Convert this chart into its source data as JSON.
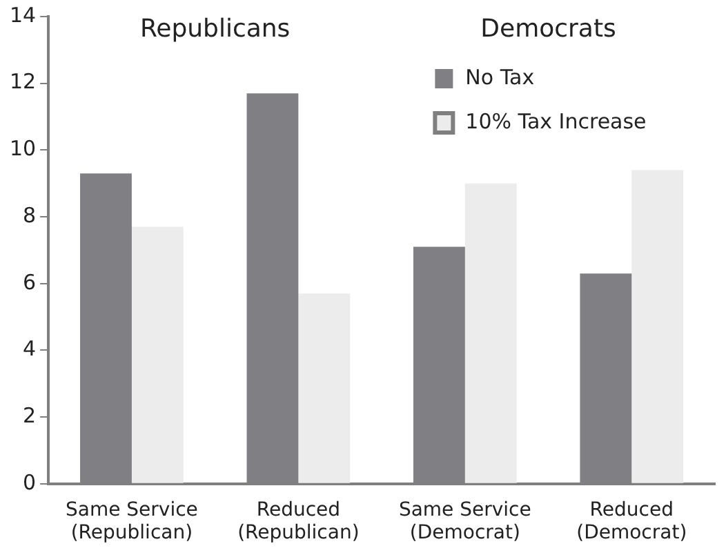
{
  "chart_data": {
    "type": "bar",
    "categories": [
      "Same Service\n(Republican)",
      "Reduced\n(Republican)",
      "Same Service\n(Democrat)",
      "Reduced\n(Democrat)"
    ],
    "series": [
      {
        "name": "No Tax",
        "color": "#808084",
        "values": [
          9.3,
          11.7,
          7.1,
          6.3
        ]
      },
      {
        "name": "10% Tax Increase",
        "color": "#ececec",
        "values": [
          7.7,
          5.7,
          9.0,
          9.4
        ]
      }
    ],
    "ylim": [
      0,
      14
    ],
    "yticks": [
      0,
      2,
      4,
      6,
      8,
      10,
      12,
      14
    ],
    "grid": false,
    "legend": "top right",
    "annotations": [
      "Republicans",
      "Democrats"
    ]
  }
}
